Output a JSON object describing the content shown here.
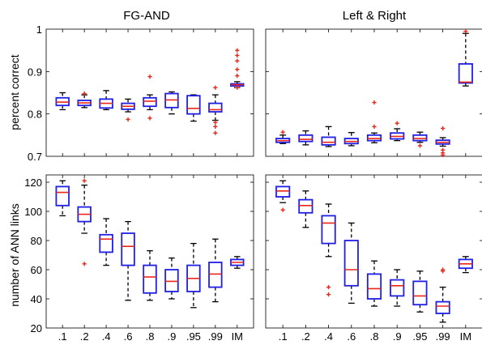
{
  "chart_data": [
    {
      "type": "box",
      "title": "FG-AND",
      "ylabel": "percent correct",
      "categories": [
        ".1",
        ".2",
        ".4",
        ".6",
        ".8",
        ".9",
        ".95",
        ".99",
        "IM"
      ],
      "ylim": [
        0.7,
        1.0
      ],
      "yticks": [
        0.7,
        0.8,
        0.9,
        1.0
      ],
      "ytick_labels": [
        "0.7",
        "0.8",
        "0.9",
        "1"
      ],
      "show_xtick_labels": false,
      "boxes": [
        {
          "min": 0.81,
          "q1": 0.82,
          "median": 0.828,
          "q3": 0.838,
          "max": 0.85,
          "outliers": []
        },
        {
          "min": 0.815,
          "q1": 0.82,
          "median": 0.826,
          "q3": 0.832,
          "max": 0.845,
          "outliers": [
            0.848
          ]
        },
        {
          "min": 0.81,
          "q1": 0.814,
          "median": 0.825,
          "q3": 0.835,
          "max": 0.855,
          "outliers": []
        },
        {
          "min": 0.805,
          "q1": 0.811,
          "median": 0.818,
          "q3": 0.825,
          "max": 0.835,
          "outliers": [
            0.787
          ]
        },
        {
          "min": 0.81,
          "q1": 0.818,
          "median": 0.83,
          "q3": 0.838,
          "max": 0.845,
          "outliers": [
            0.888,
            0.79
          ]
        },
        {
          "min": 0.8,
          "q1": 0.815,
          "median": 0.833,
          "q3": 0.848,
          "max": 0.852,
          "outliers": []
        },
        {
          "min": 0.783,
          "q1": 0.8,
          "median": 0.813,
          "q3": 0.843,
          "max": 0.845,
          "outliers": []
        },
        {
          "min": 0.785,
          "q1": 0.805,
          "median": 0.81,
          "q3": 0.825,
          "max": 0.845,
          "outliers": [
            0.862,
            0.78,
            0.77,
            0.755
          ]
        },
        {
          "min": 0.862,
          "q1": 0.866,
          "median": 0.869,
          "q3": 0.871,
          "max": 0.876,
          "outliers": [
            0.95,
            0.938,
            0.925,
            0.905,
            0.89,
            0.862
          ]
        }
      ]
    },
    {
      "type": "box",
      "title": "Left & Right",
      "ylabel": "",
      "categories": [
        ".1",
        ".2",
        ".4",
        ".6",
        ".8",
        ".9",
        ".95",
        ".99",
        "IM"
      ],
      "ylim": [
        0.7,
        1.0
      ],
      "yticks": [
        0.7,
        0.8,
        0.9,
        1.0
      ],
      "ytick_labels": [],
      "show_xtick_labels": false,
      "boxes": [
        {
          "min": 0.73,
          "q1": 0.733,
          "median": 0.737,
          "q3": 0.742,
          "max": 0.75,
          "outliers": [
            0.757
          ]
        },
        {
          "min": 0.727,
          "q1": 0.735,
          "median": 0.74,
          "q3": 0.75,
          "max": 0.76,
          "outliers": []
        },
        {
          "min": 0.723,
          "q1": 0.727,
          "median": 0.733,
          "q3": 0.745,
          "max": 0.77,
          "outliers": []
        },
        {
          "min": 0.725,
          "q1": 0.73,
          "median": 0.735,
          "q3": 0.742,
          "max": 0.756,
          "outliers": []
        },
        {
          "min": 0.732,
          "q1": 0.737,
          "median": 0.742,
          "q3": 0.75,
          "max": 0.755,
          "outliers": [
            0.827,
            0.77
          ]
        },
        {
          "min": 0.737,
          "q1": 0.741,
          "median": 0.747,
          "q3": 0.755,
          "max": 0.765,
          "outliers": [
            0.778
          ]
        },
        {
          "min": 0.733,
          "q1": 0.737,
          "median": 0.742,
          "q3": 0.75,
          "max": 0.757,
          "outliers": [
            0.725
          ]
        },
        {
          "min": 0.724,
          "q1": 0.729,
          "median": 0.733,
          "q3": 0.738,
          "max": 0.744,
          "outliers": [
            0.766,
            0.715,
            0.708,
            0.703
          ]
        },
        {
          "min": 0.866,
          "q1": 0.873,
          "median": 0.875,
          "q3": 0.918,
          "max": 0.99,
          "outliers": [
            0.995
          ]
        }
      ]
    },
    {
      "type": "box",
      "title": "",
      "ylabel": "number of ANN links",
      "categories": [
        ".1",
        ".2",
        ".4",
        ".6",
        ".8",
        ".9",
        ".95",
        ".99",
        "IM"
      ],
      "ylim": [
        20,
        125
      ],
      "yticks": [
        20,
        40,
        60,
        80,
        100,
        120
      ],
      "ytick_labels": [
        "20",
        "40",
        "60",
        "80",
        "100",
        "120"
      ],
      "show_xtick_labels": true,
      "boxes": [
        {
          "min": 97,
          "q1": 104,
          "median": 113,
          "q3": 117,
          "max": 121,
          "outliers": []
        },
        {
          "min": 85,
          "q1": 93,
          "median": 98,
          "q3": 103,
          "max": 118,
          "outliers": [
            121,
            64
          ]
        },
        {
          "min": 63,
          "q1": 72,
          "median": 81,
          "q3": 84,
          "max": 95,
          "outliers": []
        },
        {
          "min": 39,
          "q1": 63,
          "median": 76,
          "q3": 85,
          "max": 93,
          "outliers": []
        },
        {
          "min": 39,
          "q1": 44,
          "median": 55,
          "q3": 63,
          "max": 73,
          "outliers": []
        },
        {
          "min": 40,
          "q1": 45,
          "median": 52,
          "q3": 60,
          "max": 68,
          "outliers": []
        },
        {
          "min": 34,
          "q1": 45,
          "median": 54,
          "q3": 63,
          "max": 78,
          "outliers": []
        },
        {
          "min": 38,
          "q1": 48,
          "median": 57,
          "q3": 65,
          "max": 81,
          "outliers": []
        },
        {
          "min": 61,
          "q1": 63,
          "median": 65,
          "q3": 67,
          "max": 69,
          "outliers": []
        }
      ]
    },
    {
      "type": "box",
      "title": "",
      "ylabel": "",
      "categories": [
        ".1",
        ".2",
        ".4",
        ".6",
        ".8",
        ".9",
        ".95",
        ".99",
        "IM"
      ],
      "ylim": [
        20,
        125
      ],
      "yticks": [
        20,
        40,
        60,
        80,
        100,
        120
      ],
      "ytick_labels": [],
      "show_xtick_labels": true,
      "boxes": [
        {
          "min": 106,
          "q1": 110,
          "median": 114,
          "q3": 117,
          "max": 121,
          "outliers": [
            101
          ]
        },
        {
          "min": 89,
          "q1": 99,
          "median": 104,
          "q3": 108,
          "max": 114,
          "outliers": []
        },
        {
          "min": 69,
          "q1": 78,
          "median": 92,
          "q3": 97,
          "max": 105,
          "outliers": [
            48,
            43
          ]
        },
        {
          "min": 37,
          "q1": 49,
          "median": 60,
          "q3": 80,
          "max": 92,
          "outliers": []
        },
        {
          "min": 35,
          "q1": 40,
          "median": 47,
          "q3": 57,
          "max": 66,
          "outliers": []
        },
        {
          "min": 35,
          "q1": 42,
          "median": 49,
          "q3": 53,
          "max": 60,
          "outliers": []
        },
        {
          "min": 31,
          "q1": 36,
          "median": 42,
          "q3": 52,
          "max": 59,
          "outliers": []
        },
        {
          "min": 24,
          "q1": 30,
          "median": 35,
          "q3": 38,
          "max": 48,
          "outliers": [
            60,
            59
          ]
        },
        {
          "min": 58,
          "q1": 61,
          "median": 64,
          "q3": 67,
          "max": 69,
          "outliers": []
        }
      ]
    }
  ]
}
